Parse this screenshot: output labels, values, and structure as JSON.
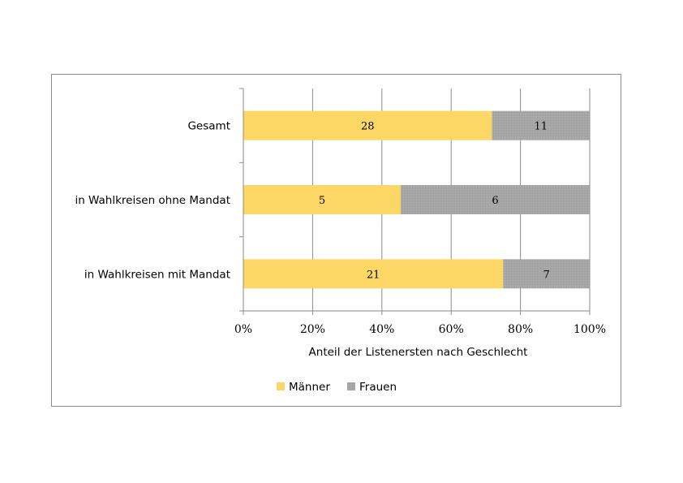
{
  "chart_data": {
    "type": "bar",
    "orientation": "horizontal",
    "stacked": "percent",
    "categories": [
      "Gesamt",
      "in Wahlkreisen ohne Mandat",
      "in Wahlkreisen mit Mandat"
    ],
    "series": [
      {
        "name": "Männer",
        "values": [
          28,
          5,
          21
        ],
        "color": "#FDD765"
      },
      {
        "name": "Frauen",
        "values": [
          11,
          6,
          7
        ],
        "color": "#A6A6A6"
      }
    ],
    "xlabel": "Anteil der Listenersten nach Geschlecht",
    "xticks": [
      "0%",
      "20%",
      "40%",
      "60%",
      "80%",
      "100%"
    ],
    "xlim": [
      0,
      100
    ],
    "grid": "vertical",
    "legend": "bottom"
  }
}
